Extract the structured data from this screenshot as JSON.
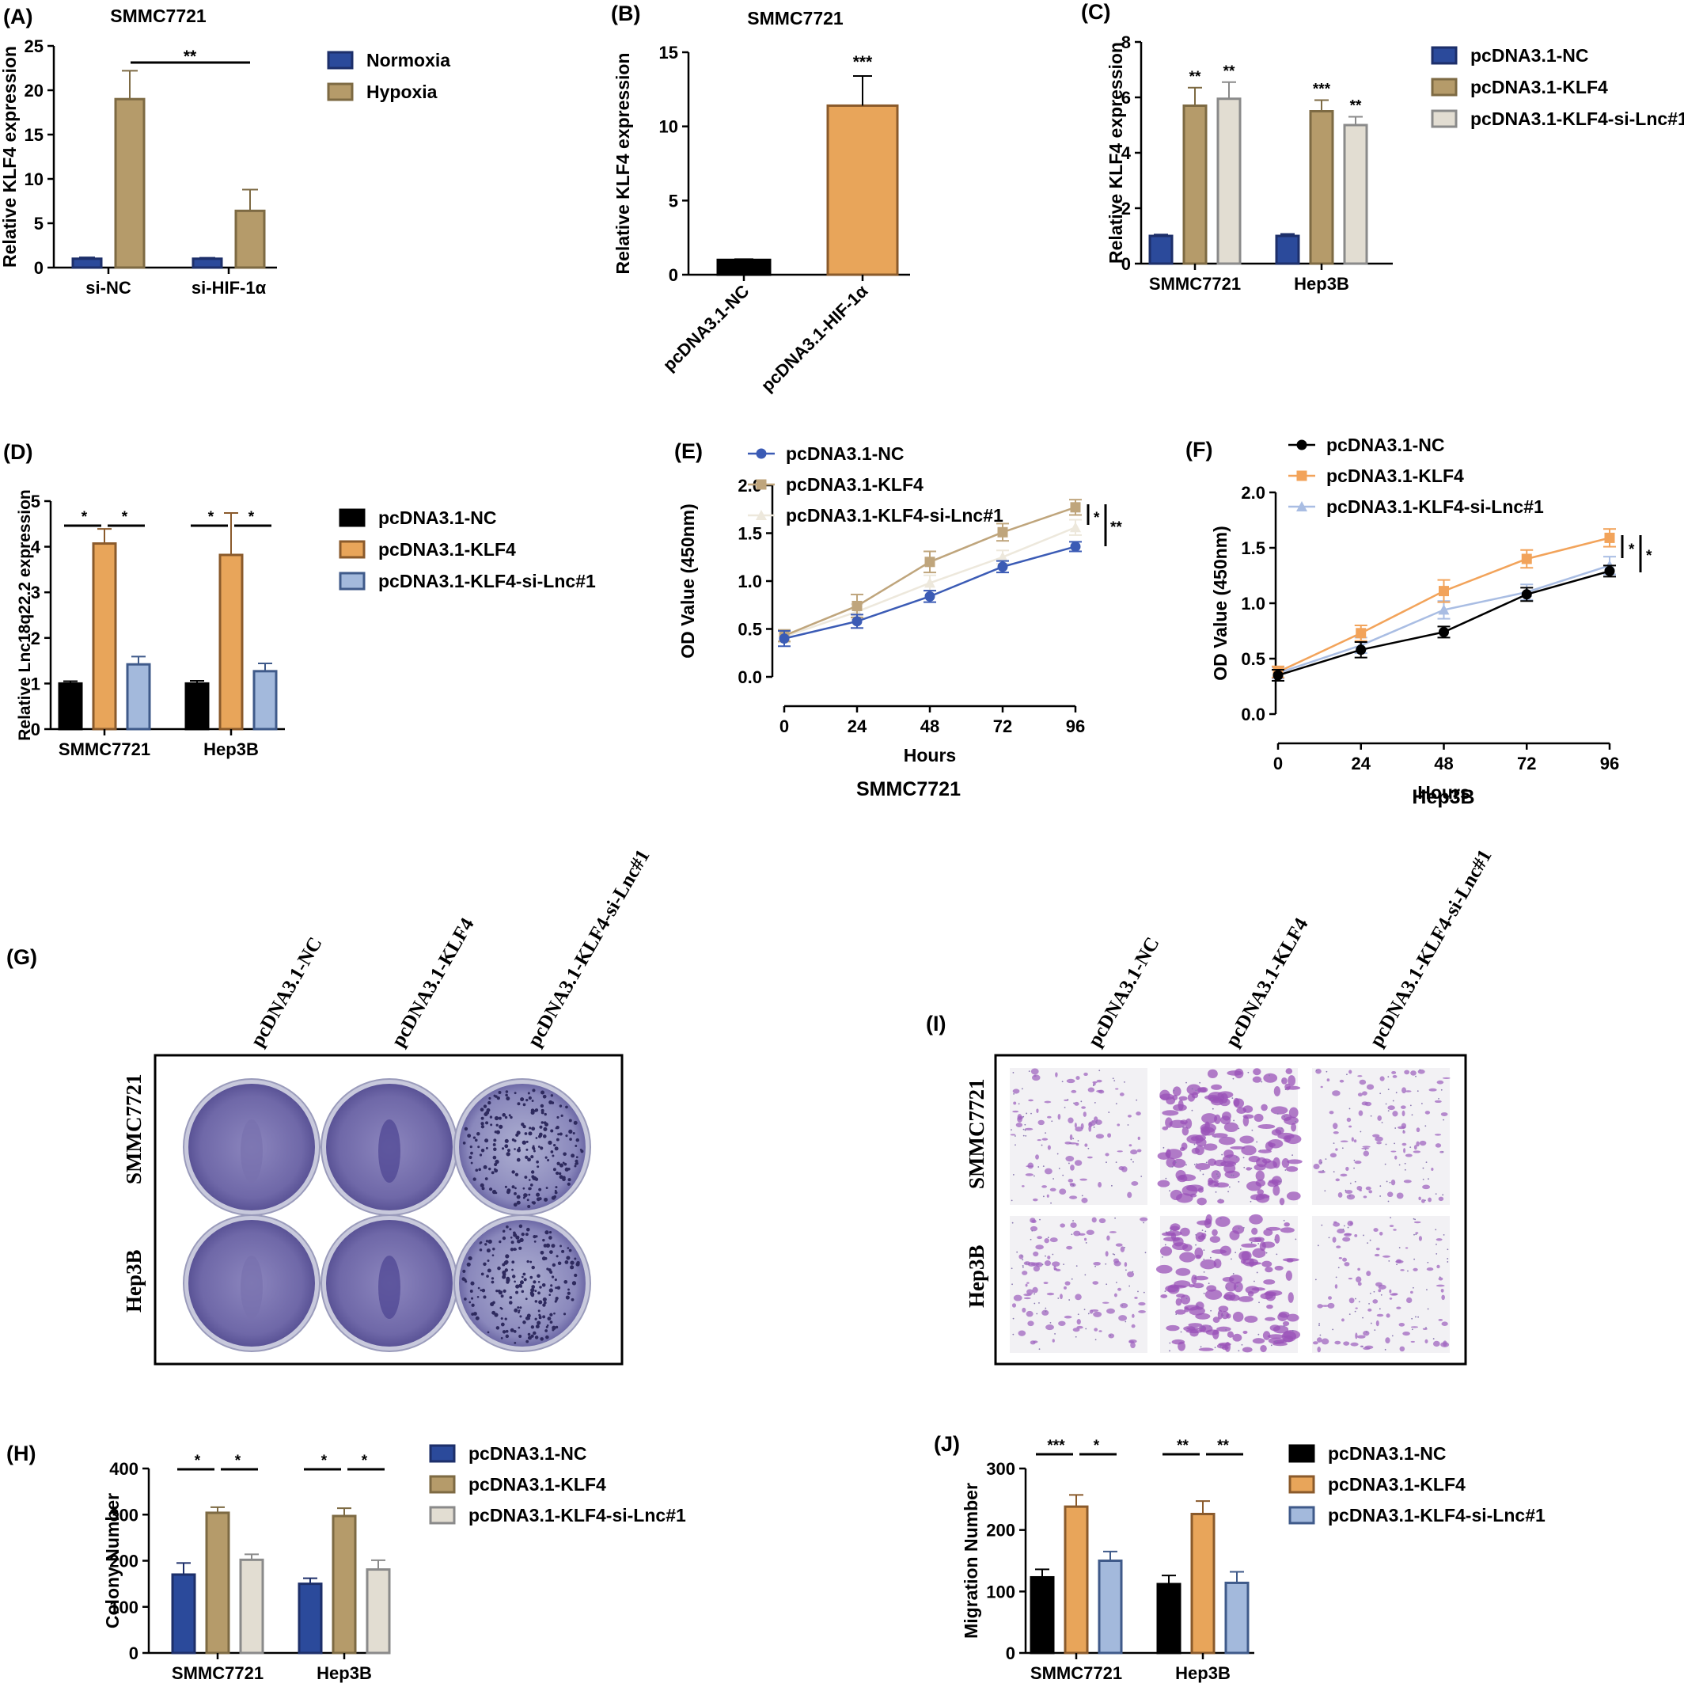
{
  "colors": {
    "navy": "#2b4a9b",
    "khaki": "#b59b6a",
    "beige": "#e2ddd2",
    "orange": "#e8a55a",
    "lightblue": "#a3b9dc",
    "black": "#000000",
    "line_blue": "#3b5bb5",
    "line_khaki": "#bfa57c",
    "line_beige": "#ede8dc",
    "line_orange": "#f2a35a",
    "line_lightblue": "#a9bde3",
    "stain_purple": "#6c62a6",
    "stain_magenta": "#9a52b8"
  },
  "panels": {
    "G": {
      "label": "(G)",
      "columns": [
        "pcDNA3.1-NC",
        "pcDNA3.1-KLF4",
        "pcDNA3.1-KLF4-si-Lnc#1"
      ],
      "rows": [
        "SMMC7721",
        "Hep3B"
      ]
    },
    "I": {
      "label": "(I)",
      "columns": [
        "pcDNA3.1-NC",
        "pcDNA3.1-KLF4",
        "pcDNA3.1-KLF4-si-Lnc#1"
      ],
      "rows": [
        "SMMC7721",
        "Hep3B"
      ]
    }
  },
  "chart_data": [
    {
      "panel": "(A)",
      "type": "bar",
      "title": "SMMC7721",
      "ylabel": "Relative KLF4 expression",
      "ylim": [
        0,
        25
      ],
      "yticks": [
        "0",
        "5",
        "10",
        "15",
        "20",
        "25"
      ],
      "categories": [
        "si-NC",
        "si-HIF-1α"
      ],
      "series": [
        {
          "name": "Normoxia",
          "color": "navy",
          "values": [
            1.0,
            1.0
          ],
          "errors": [
            0.15,
            0.1
          ]
        },
        {
          "name": "Hypoxia",
          "color": "khaki",
          "values": [
            19.0,
            6.4
          ],
          "errors": [
            3.2,
            2.4
          ]
        }
      ],
      "annotations": [
        {
          "text": "**"
        }
      ],
      "legend": "right"
    },
    {
      "panel": "(B)",
      "type": "bar",
      "title": "SMMC7721",
      "ylabel": "Relative KLF4 expression",
      "ylim": [
        0,
        15
      ],
      "yticks": [
        "0",
        "5",
        "10",
        "15"
      ],
      "categories": [
        "pcDNA3.1-NC",
        "pcDNA3.1-HIF-1α"
      ],
      "values": [
        1.0,
        11.4
      ],
      "errors": [
        0.05,
        2.0
      ],
      "colors": [
        "black",
        "orange"
      ],
      "annotations": [
        {
          "text": "***"
        }
      ]
    },
    {
      "panel": "(C)",
      "type": "bar",
      "ylabel": "Relative KLF4 expression",
      "ylim": [
        0,
        8
      ],
      "yticks": [
        "0",
        "2",
        "4",
        "6",
        "8"
      ],
      "categories": [
        "SMMC7721",
        "Hep3B"
      ],
      "series": [
        {
          "name": "pcDNA3.1-NC",
          "color": "navy",
          "values": [
            1.0,
            1.0
          ],
          "errors": [
            0.05,
            0.07
          ]
        },
        {
          "name": "pcDNA3.1-KLF4",
          "color": "khaki",
          "values": [
            5.7,
            5.5
          ],
          "errors": [
            0.65,
            0.4
          ]
        },
        {
          "name": "pcDNA3.1-KLF4-si-Lnc#1",
          "color": "beige",
          "values": [
            5.95,
            5.0
          ],
          "errors": [
            0.6,
            0.3
          ]
        }
      ],
      "stars": [
        [
          "",
          "**",
          "**"
        ],
        [
          "",
          "***",
          "**"
        ]
      ],
      "legend": "right"
    },
    {
      "panel": "(D)",
      "type": "bar",
      "ylabel": "Relative Lnc18q22.2 expression",
      "ylim": [
        0,
        5
      ],
      "yticks": [
        "0",
        "1",
        "2",
        "3",
        "4",
        "5"
      ],
      "categories": [
        "SMMC7721",
        "Hep3B"
      ],
      "series": [
        {
          "name": "pcDNA3.1-NC",
          "color": "black",
          "values": [
            1.0,
            1.0
          ],
          "errors": [
            0.05,
            0.06
          ]
        },
        {
          "name": "pcDNA3.1-KLF4",
          "color": "orange",
          "values": [
            4.07,
            3.82
          ],
          "errors": [
            0.32,
            0.92
          ]
        },
        {
          "name": "pcDNA3.1-KLF4-si-Lnc#1",
          "color": "lightblue",
          "values": [
            1.42,
            1.27
          ],
          "errors": [
            0.17,
            0.17
          ]
        }
      ],
      "annotations": [
        {
          "text": "*"
        },
        {
          "text": "*"
        },
        {
          "text": "*"
        },
        {
          "text": "*"
        }
      ],
      "legend": "right"
    },
    {
      "panel": "(E)",
      "type": "line",
      "title": "SMMC7721",
      "xlabel": "Hours",
      "ylabel": "OD Value (450nm)",
      "xlim": [
        0,
        96
      ],
      "ylim": [
        0,
        2.0
      ],
      "xticks": [
        "0",
        "24",
        "48",
        "72",
        "96"
      ],
      "yticks": [
        "0.0",
        "0.5",
        "1.0",
        "1.5",
        "2.0"
      ],
      "x": [
        0,
        24,
        48,
        72,
        96
      ],
      "series": [
        {
          "name": "pcDNA3.1-NC",
          "color": "line_blue",
          "marker": "circle",
          "values": [
            0.4,
            0.58,
            0.84,
            1.15,
            1.36
          ],
          "errors": [
            0.08,
            0.07,
            0.06,
            0.06,
            0.05
          ]
        },
        {
          "name": "pcDNA3.1-KLF4",
          "color": "line_khaki",
          "marker": "square",
          "values": [
            0.43,
            0.74,
            1.2,
            1.51,
            1.77
          ],
          "errors": [
            0.06,
            0.12,
            0.11,
            0.09,
            0.08
          ]
        },
        {
          "name": "pcDNA3.1-KLF4-si-Lnc#1",
          "color": "line_beige",
          "marker": "triangle",
          "values": [
            0.42,
            0.68,
            0.98,
            1.25,
            1.56
          ],
          "errors": [
            0.06,
            0.08,
            0.08,
            0.07,
            0.08
          ]
        }
      ],
      "annotations": [
        {
          "text": "*"
        },
        {
          "text": "**"
        }
      ],
      "legend": "top"
    },
    {
      "panel": "(F)",
      "type": "line",
      "title": "Hep3B",
      "xlabel": "Hours",
      "ylabel": "OD Value (450nm)",
      "xlim": [
        0,
        96
      ],
      "ylim": [
        0,
        2.0
      ],
      "xticks": [
        "0",
        "24",
        "48",
        "72",
        "96"
      ],
      "yticks": [
        "0.0",
        "0.5",
        "1.0",
        "1.5",
        "2.0"
      ],
      "x": [
        0,
        24,
        48,
        72,
        96
      ],
      "series": [
        {
          "name": "pcDNA3.1-NC",
          "color": "black",
          "marker": "circle",
          "values": [
            0.35,
            0.58,
            0.74,
            1.08,
            1.29
          ],
          "errors": [
            0.05,
            0.07,
            0.05,
            0.06,
            0.05
          ]
        },
        {
          "name": "pcDNA3.1-KLF4",
          "color": "line_orange",
          "marker": "square",
          "values": [
            0.38,
            0.73,
            1.11,
            1.4,
            1.59
          ],
          "errors": [
            0.05,
            0.07,
            0.1,
            0.08,
            0.08
          ]
        },
        {
          "name": "pcDNA3.1-KLF4-si-Lnc#1",
          "color": "line_lightblue",
          "marker": "triangle",
          "values": [
            0.37,
            0.62,
            0.94,
            1.1,
            1.34
          ],
          "errors": [
            0.05,
            0.07,
            0.08,
            0.07,
            0.08
          ]
        }
      ],
      "annotations": [
        {
          "text": "*"
        },
        {
          "text": "*"
        }
      ],
      "legend": "top"
    },
    {
      "panel": "(H)",
      "type": "bar",
      "ylabel": "Colony Number",
      "ylim": [
        0,
        400
      ],
      "yticks": [
        "0",
        "100",
        "200",
        "300",
        "400"
      ],
      "categories": [
        "SMMC7721",
        "Hep3B"
      ],
      "series": [
        {
          "name": "pcDNA3.1-NC",
          "color": "navy",
          "values": [
            170,
            150
          ],
          "errors": [
            25,
            12
          ]
        },
        {
          "name": "pcDNA3.1-KLF4",
          "color": "khaki",
          "values": [
            304,
            297
          ],
          "errors": [
            12,
            17
          ]
        },
        {
          "name": "pcDNA3.1-KLF4-si-Lnc#1",
          "color": "beige",
          "values": [
            202,
            181
          ],
          "errors": [
            12,
            20
          ]
        }
      ],
      "annotations": [
        {
          "text": "*"
        },
        {
          "text": "*"
        },
        {
          "text": "*"
        },
        {
          "text": "*"
        }
      ],
      "legend": "right"
    },
    {
      "panel": "(J)",
      "type": "bar",
      "ylabel": "Migration Number",
      "ylim": [
        0,
        300
      ],
      "yticks": [
        "0",
        "100",
        "200",
        "300"
      ],
      "categories": [
        "SMMC7721",
        "Hep3B"
      ],
      "series": [
        {
          "name": "pcDNA3.1-NC",
          "color": "black",
          "values": [
            123,
            112
          ],
          "errors": [
            13,
            14
          ]
        },
        {
          "name": "pcDNA3.1-KLF4",
          "color": "orange",
          "values": [
            238,
            226
          ],
          "errors": [
            19,
            21
          ]
        },
        {
          "name": "pcDNA3.1-KLF4-si-Lnc#1",
          "color": "lightblue",
          "values": [
            150,
            114
          ],
          "errors": [
            15,
            18
          ]
        }
      ],
      "annotations": [
        {
          "text": "***"
        },
        {
          "text": "*"
        },
        {
          "text": "**"
        },
        {
          "text": "**"
        }
      ],
      "legend": "right"
    }
  ]
}
